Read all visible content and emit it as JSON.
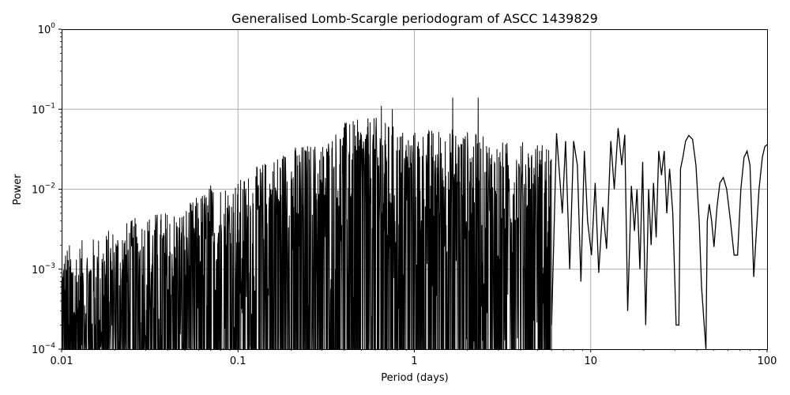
{
  "chart_data": {
    "type": "line",
    "title": "Generalised Lomb-Scargle periodogram of ASCC 1439829",
    "xlabel": "Period (days)",
    "ylabel": "Power",
    "xscale": "log",
    "yscale": "log",
    "xlim": [
      0.01,
      100
    ],
    "ylim": [
      0.0001,
      1
    ],
    "grid": true,
    "line_color": "#000000",
    "x_ticks": [
      {
        "value": 0.01,
        "label": "0.01"
      },
      {
        "value": 0.1,
        "label": "0.1"
      },
      {
        "value": 1,
        "label": "1"
      },
      {
        "value": 10,
        "label": "10"
      },
      {
        "value": 100,
        "label": "100"
      }
    ],
    "y_ticks": [
      {
        "value": 0.0001,
        "base": "10",
        "exp": "−4"
      },
      {
        "value": 0.001,
        "base": "10",
        "exp": "−3"
      },
      {
        "value": 0.01,
        "base": "10",
        "exp": "−2"
      },
      {
        "value": 0.1,
        "base": "10",
        "exp": "−1"
      },
      {
        "value": 1,
        "base": "10",
        "exp": "0"
      }
    ],
    "envelope": [
      [
        0.01,
        0.002
      ],
      [
        0.015,
        0.0025
      ],
      [
        0.02,
        0.0035
      ],
      [
        0.03,
        0.005
      ],
      [
        0.05,
        0.006
      ],
      [
        0.07,
        0.012
      ],
      [
        0.1,
        0.013
      ],
      [
        0.15,
        0.025
      ],
      [
        0.2,
        0.035
      ],
      [
        0.3,
        0.04
      ],
      [
        0.4,
        0.07
      ],
      [
        0.6,
        0.08
      ],
      [
        0.8,
        0.06
      ],
      [
        1,
        0.055
      ],
      [
        1.5,
        0.06
      ],
      [
        2,
        0.055
      ],
      [
        3,
        0.04
      ],
      [
        4,
        0.04
      ],
      [
        5,
        0.04
      ],
      [
        6,
        0.04
      ]
    ],
    "peaks": [
      [
        0.43,
        0.065
      ],
      [
        0.65,
        0.11
      ],
      [
        0.75,
        0.1
      ],
      [
        1.65,
        0.14
      ],
      [
        2.3,
        0.14
      ]
    ],
    "series": [
      {
        "style": "smooth",
        "x": [
          6,
          6.4,
          6.9,
          7.2,
          7.6,
          8.0,
          8.4,
          8.8,
          9.2,
          9.6,
          10.1,
          10.6,
          11.1,
          11.7,
          12.3,
          13.0,
          13.6,
          14.3,
          15.0,
          15.6,
          16.2,
          17.0,
          17.7,
          18.3,
          19.0,
          19.7,
          20.5,
          21.3,
          22.0,
          22.7,
          23.5,
          24.3,
          25.2,
          26.1,
          27.0,
          28.0,
          29.2,
          30.5,
          31.6,
          32.3,
          33.3,
          34.5,
          36.0,
          37.8,
          39.5,
          41.2,
          42.5,
          44.0,
          45.0,
          45.8,
          47.0,
          48.5,
          50.0,
          52.0,
          54.0,
          56.5,
          59.0,
          62.0,
          65.0,
          68.0,
          71.0,
          74.0,
          77.0,
          80.0,
          82.0,
          84.0,
          87.0,
          90.0,
          94.0,
          97.0,
          100.0
        ],
        "y": [
          0.0002,
          0.05,
          0.005,
          0.04,
          0.001,
          0.04,
          0.02,
          0.0007,
          0.03,
          0.004,
          0.0015,
          0.012,
          0.0009,
          0.006,
          0.0018,
          0.04,
          0.01,
          0.058,
          0.02,
          0.048,
          0.0003,
          0.011,
          0.003,
          0.01,
          0.001,
          0.022,
          0.0002,
          0.01,
          0.002,
          0.012,
          0.0025,
          0.03,
          0.015,
          0.03,
          0.005,
          0.018,
          0.005,
          0.0002,
          0.0002,
          0.018,
          0.025,
          0.04,
          0.047,
          0.042,
          0.02,
          0.004,
          0.0006,
          0.0002,
          0.0001,
          0.004,
          0.0065,
          0.004,
          0.0019,
          0.006,
          0.012,
          0.014,
          0.01,
          0.004,
          0.0015,
          0.0015,
          0.01,
          0.025,
          0.03,
          0.02,
          0.004,
          0.0008,
          0.003,
          0.01,
          0.025,
          0.034,
          0.036
        ]
      }
    ]
  }
}
